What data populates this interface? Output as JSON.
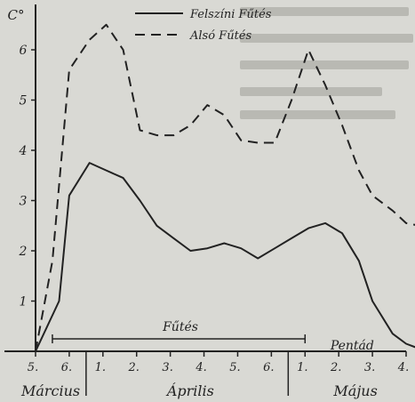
{
  "chart_data": {
    "type": "line",
    "ylabel": "C°",
    "ylim": [
      0,
      7
    ],
    "yticks": [
      1,
      2,
      3,
      4,
      5,
      6
    ],
    "x_ticks": [
      "5.",
      "6.",
      "1.",
      "2.",
      "3.",
      "4.",
      "5.",
      "6.",
      "1.",
      "2.",
      "3.",
      "4."
    ],
    "months": [
      "Március",
      "Április",
      "Május"
    ],
    "series": [
      {
        "name": "Felszíni Fűtés",
        "style": "solid",
        "x": [
          0,
          0.7,
          1.0,
          1.6,
          2.1,
          2.6,
          3.1,
          3.6,
          4.1,
          4.6,
          5.1,
          5.6,
          6.1,
          6.6,
          7.1,
          7.6,
          8.1,
          8.6,
          9.1,
          9.6,
          10.0,
          10.6,
          11.0,
          11.4
        ],
        "y": [
          0,
          1.0,
          3.1,
          3.75,
          3.6,
          3.45,
          3.0,
          2.5,
          2.25,
          2.0,
          2.05,
          2.15,
          2.05,
          1.85,
          2.05,
          2.25,
          2.45,
          2.55,
          2.35,
          1.8,
          1.0,
          0.35,
          0.15,
          0.05
        ]
      },
      {
        "name": "Alsó Fűtés",
        "style": "dashed",
        "x": [
          0,
          0.5,
          1.0,
          1.6,
          2.1,
          2.6,
          3.1,
          3.6,
          4.1,
          4.6,
          5.1,
          5.6,
          6.1,
          6.6,
          7.1,
          7.6,
          8.1,
          8.6,
          9.1,
          9.6,
          10.0,
          10.6,
          11.0,
          11.4
        ],
        "y": [
          0,
          1.8,
          5.6,
          6.2,
          6.5,
          6.0,
          4.4,
          4.3,
          4.3,
          4.5,
          4.9,
          4.7,
          4.2,
          4.15,
          4.15,
          5.0,
          6.0,
          5.3,
          4.5,
          3.6,
          3.1,
          2.8,
          2.55,
          2.5
        ]
      }
    ],
    "annotations": {
      "heating_label": "Fűtés",
      "pentad_label": "Pentád"
    },
    "legend": "top-center",
    "grid": false
  },
  "colors": {
    "background": "#d9d9d4",
    "ink": "#222222",
    "bg_text": "#b9b9b3"
  }
}
